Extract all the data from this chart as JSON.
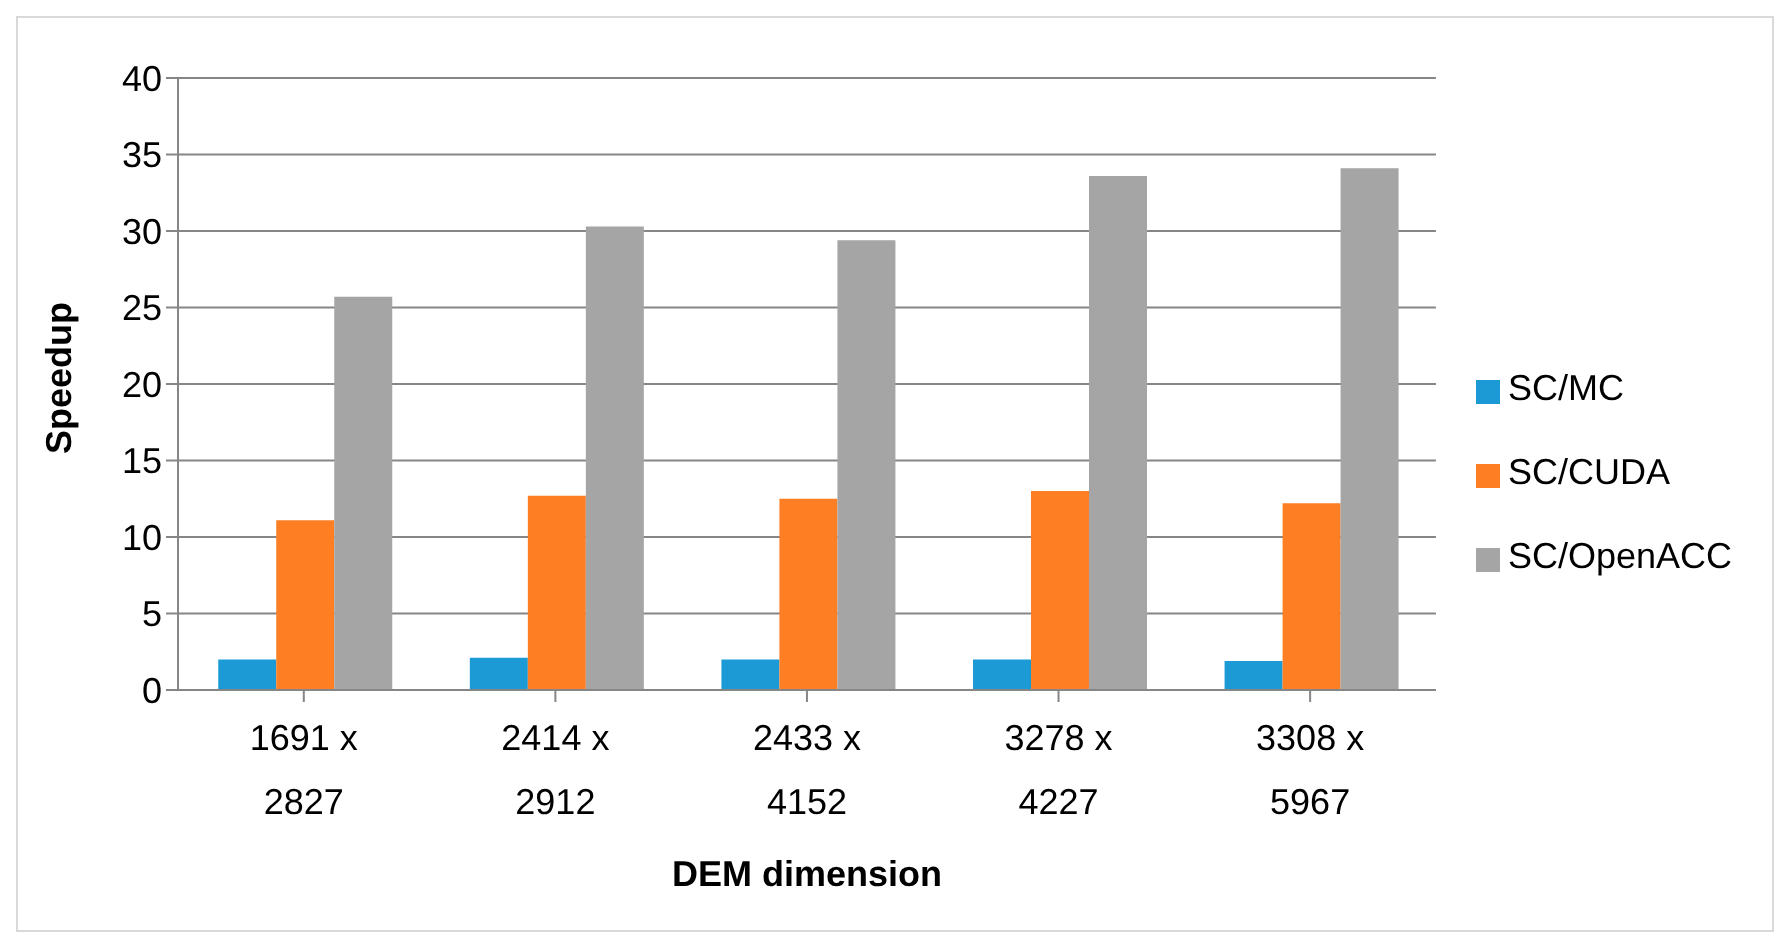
{
  "chart_data": {
    "type": "bar",
    "xlabel": "DEM dimension",
    "ylabel": "Speedup",
    "categories": [
      "1691 x 2827",
      "2414 x 2912",
      "2433 x 4152",
      "3278 x 4227",
      "3308 x 5967"
    ],
    "series": [
      {
        "name": "SC/MC",
        "color": "#1b9ad6",
        "values": [
          2.0,
          2.1,
          2.0,
          2.0,
          1.9
        ]
      },
      {
        "name": "SC/CUDA",
        "color": "#fd7e23",
        "values": [
          11.1,
          12.7,
          12.5,
          13.0,
          12.2
        ]
      },
      {
        "name": "SC/OpenACC",
        "color": "#a5a5a5",
        "values": [
          25.7,
          30.3,
          29.4,
          33.6,
          34.1
        ]
      }
    ],
    "ylim": [
      0,
      40
    ],
    "yticks": [
      0,
      5,
      10,
      15,
      20,
      25,
      30,
      35,
      40
    ],
    "grid": "y",
    "legend": "right"
  }
}
